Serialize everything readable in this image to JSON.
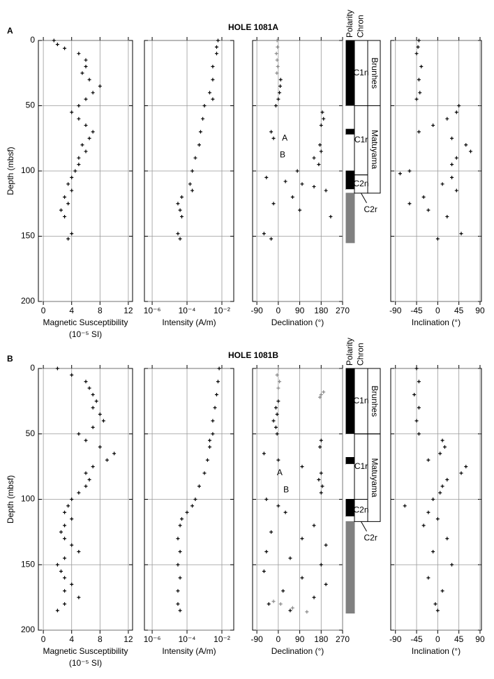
{
  "chart_data": [
    {
      "label": "A",
      "title": "HOLE 1081A",
      "ylabel": "Depth (mbsf)",
      "ylim": [
        0,
        200
      ],
      "yticks": [
        0,
        50,
        100,
        150,
        200
      ],
      "panels": [
        {
          "type": "scatter",
          "xlabel": [
            "Magnetic Susceptibility",
            "(10⁻⁵ SI)"
          ],
          "xlim": [
            -0.7,
            12.6
          ],
          "xticks": [
            0,
            4,
            8,
            12
          ],
          "grid": true,
          "series": [
            {
              "color": "#000000",
              "y": [
                0,
                3,
                6,
                10,
                15,
                20,
                25,
                30,
                35,
                40,
                45,
                50,
                55,
                60,
                65,
                70,
                75,
                80,
                85,
                90,
                95,
                100,
                105,
                110,
                115,
                120,
                125,
                130,
                135,
                148,
                152
              ],
              "x": [
                1.5,
                2,
                3,
                5,
                6,
                6,
                5.5,
                6.5,
                8,
                7,
                6,
                5,
                4,
                5,
                6,
                7,
                6.5,
                5.5,
                6,
                5,
                5,
                4.5,
                4,
                3.5,
                4,
                3,
                3.5,
                2.5,
                3,
                4,
                3.5
              ]
            }
          ]
        },
        {
          "type": "scatter",
          "xscale": "log",
          "xlabel": [
            "Intensity (A/m)"
          ],
          "xlim": [
            3.6e-07,
            0.048
          ],
          "xticks": [
            {
              "value": 1e-06,
              "label": "10⁻⁶"
            },
            {
              "value": 0.0001,
              "label": "10⁻⁴"
            },
            {
              "value": 0.01,
              "label": "10⁻²"
            }
          ],
          "grid": true,
          "series": [
            {
              "color": "#000000",
              "y": [
                0,
                5,
                10,
                20,
                30,
                40,
                45,
                50,
                60,
                70,
                80,
                90,
                100,
                110,
                115,
                120,
                125,
                130,
                135,
                148,
                152
              ],
              "x": [
                0.006,
                0.005,
                0.005,
                0.003,
                0.003,
                0.002,
                0.003,
                0.001,
                0.0008,
                0.0006,
                0.0005,
                0.0003,
                0.0002,
                0.00015,
                0.0002,
                5e-05,
                3e-05,
                4e-05,
                5e-05,
                3e-05,
                4e-05
              ]
            }
          ]
        },
        {
          "type": "scatter",
          "xlabel": [
            "Declination (°)"
          ],
          "xlim": [
            -108,
            270
          ],
          "xticks": [
            -90,
            0,
            90,
            180,
            270
          ],
          "grid": true,
          "series": [
            {
              "color": "#000000",
              "y": [
                30,
                35,
                40,
                45,
                50,
                55,
                60,
                65,
                70,
                75,
                80,
                85,
                90,
                95,
                100,
                105,
                108,
                110,
                112,
                115,
                120,
                125,
                130,
                135,
                148,
                152
              ],
              "x": [
                10,
                8,
                5,
                0,
                -10,
                185,
                190,
                180,
                -30,
                -20,
                175,
                180,
                150,
                170,
                80,
                -50,
                30,
                100,
                150,
                200,
                60,
                -20,
                90,
                220,
                -60,
                -30
              ]
            },
            {
              "color": "#888888",
              "y": [
                0,
                5,
                10,
                15,
                20,
                25
              ],
              "x": [
                -5,
                -3,
                -8,
                -5,
                -2,
                -6
              ]
            }
          ],
          "annotations": [
            {
              "text": "A",
              "x": 27,
              "y": 75
            },
            {
              "text": "B",
              "x": 18,
              "y": 88
            }
          ]
        },
        {
          "type": "scatter",
          "xlabel": [
            "Inclination (°)"
          ],
          "xlim": [
            -100,
            93
          ],
          "xticks": [
            -90,
            -45,
            0,
            45,
            90
          ],
          "grid": true,
          "series": [
            {
              "color": "#000000",
              "y": [
                0,
                5,
                10,
                20,
                30,
                40,
                45,
                50,
                55,
                60,
                65,
                70,
                75,
                80,
                85,
                90,
                95,
                100,
                102,
                105,
                110,
                115,
                120,
                125,
                130,
                135,
                148,
                152
              ],
              "x": [
                -40,
                -42,
                -45,
                -35,
                -40,
                -38,
                -45,
                45,
                40,
                20,
                -10,
                -40,
                30,
                60,
                70,
                40,
                30,
                -60,
                -80,
                30,
                10,
                40,
                -30,
                -60,
                -20,
                20,
                50,
                0
              ]
            }
          ]
        }
      ],
      "polarity": {
        "type": "polarity",
        "polarity_heading": "Polarity",
        "chron_heading": "Chron",
        "intervals": [
          {
            "top": 0,
            "bottom": 50,
            "color": "#000000"
          },
          {
            "top": 50,
            "bottom": 68,
            "color": "#ffffff"
          },
          {
            "top": 68,
            "bottom": 72,
            "color": "#000000"
          },
          {
            "top": 72,
            "bottom": 100,
            "color": "#ffffff"
          },
          {
            "top": 100,
            "bottom": 114,
            "color": "#000000"
          },
          {
            "top": 114,
            "bottom": 117,
            "color": "#ffffff"
          },
          {
            "top": 117,
            "bottom": 155,
            "color": "#808080"
          }
        ],
        "chrons": [
          {
            "label": "C1n",
            "top": 0,
            "bottom": 50
          },
          {
            "label": "C1r",
            "top": 50,
            "bottom": 103
          },
          {
            "label": "C2n",
            "top": 103,
            "bottom": 117
          },
          {
            "label": "C2r",
            "top": 117
          }
        ],
        "epochs": [
          {
            "label": "Brunhes",
            "top": 0,
            "bottom": 50
          },
          {
            "label": "Matuyama",
            "top": 50,
            "bottom": 117
          }
        ]
      }
    },
    {
      "label": "B",
      "title": "HOLE 1081B",
      "ylabel": "Depth (mbsf)",
      "ylim": [
        0,
        200
      ],
      "yticks": [
        0,
        50,
        100,
        150,
        200
      ],
      "panels": [
        {
          "type": "scatter",
          "xlabel": [
            "Magnetic Susceptibility",
            "(10⁻⁵ SI)"
          ],
          "xlim": [
            -0.7,
            12.6
          ],
          "xticks": [
            0,
            4,
            8,
            12
          ],
          "grid": true,
          "series": [
            {
              "color": "#000000",
              "y": [
                0,
                5,
                10,
                15,
                20,
                25,
                30,
                35,
                40,
                45,
                50,
                55,
                60,
                65,
                70,
                75,
                80,
                85,
                90,
                95,
                100,
                105,
                110,
                115,
                120,
                125,
                130,
                135,
                140,
                145,
                150,
                155,
                160,
                165,
                170,
                175,
                180,
                185
              ],
              "x": [
                2,
                4,
                6,
                6.5,
                7,
                7.5,
                7,
                8,
                8.5,
                7,
                5,
                6,
                8,
                10,
                9,
                7,
                6,
                6.5,
                6,
                5,
                4,
                3.5,
                3,
                4,
                3,
                2.5,
                3,
                4,
                5,
                3,
                2,
                2.5,
                3,
                4,
                3,
                5,
                3,
                2
              ]
            }
          ]
        },
        {
          "type": "scatter",
          "xscale": "log",
          "xlabel": [
            "Intensity (A/m)"
          ],
          "xlim": [
            3.6e-07,
            0.048
          ],
          "xticks": [
            {
              "value": 1e-06,
              "label": "10⁻⁶"
            },
            {
              "value": 0.0001,
              "label": "10⁻⁴"
            },
            {
              "value": 0.01,
              "label": "10⁻²"
            }
          ],
          "grid": true,
          "series": [
            {
              "color": "#000000",
              "y": [
                0,
                10,
                20,
                30,
                40,
                50,
                55,
                60,
                70,
                80,
                90,
                100,
                105,
                110,
                115,
                120,
                130,
                140,
                150,
                160,
                170,
                180,
                185
              ],
              "x": [
                0.007,
                0.006,
                0.005,
                0.004,
                0.003,
                0.003,
                0.002,
                0.002,
                0.0015,
                0.001,
                0.0005,
                0.0003,
                0.0002,
                0.0001,
                5e-05,
                4e-05,
                3e-05,
                4e-05,
                3e-05,
                4e-05,
                3e-05,
                3e-05,
                4e-05
              ]
            }
          ]
        },
        {
          "type": "scatter",
          "xlabel": [
            "Declination (°)"
          ],
          "xlim": [
            -108,
            270
          ],
          "xticks": [
            -90,
            0,
            90,
            180,
            270
          ],
          "grid": true,
          "series": [
            {
              "color": "#000000",
              "y": [
                25,
                30,
                35,
                40,
                45,
                50,
                55,
                60,
                65,
                70,
                75,
                80,
                85,
                90,
                95,
                100,
                105,
                110,
                120,
                125,
                130,
                135,
                140,
                145,
                150,
                155,
                160,
                165,
                170,
                175,
                180,
                185
              ],
              "x": [
                0,
                -10,
                -5,
                -20,
                -10,
                -5,
                180,
                175,
                -60,
                0,
                100,
                180,
                170,
                185,
                180,
                -50,
                0,
                30,
                150,
                -30,
                100,
                200,
                -50,
                50,
                180,
                -60,
                100,
                200,
                20,
                150,
                -40,
                50
              ]
            },
            {
              "color": "#888888",
              "y": [
                0,
                5,
                10,
                15,
                18,
                20,
                22,
                178,
                180,
                183,
                186
              ],
              "x": [
                0,
                -5,
                5,
                0,
                190,
                180,
                175,
                -20,
                10,
                60,
                120
              ]
            }
          ],
          "annotations": [
            {
              "text": "A",
              "x": 6,
              "y": 80
            },
            {
              "text": "B",
              "x": 33,
              "y": 93
            }
          ]
        },
        {
          "type": "scatter",
          "xlabel": [
            "Inclination (°)"
          ],
          "xlim": [
            -100,
            93
          ],
          "xticks": [
            -90,
            -45,
            0,
            45,
            90
          ],
          "grid": true,
          "series": [
            {
              "color": "#000000",
              "y": [
                0,
                10,
                20,
                30,
                40,
                50,
                55,
                60,
                65,
                70,
                75,
                80,
                85,
                90,
                95,
                100,
                105,
                110,
                115,
                120,
                130,
                140,
                150,
                160,
                170,
                180,
                185
              ],
              "x": [
                -45,
                -40,
                -50,
                -40,
                -45,
                -40,
                10,
                15,
                5,
                -20,
                60,
                50,
                20,
                10,
                5,
                -10,
                -70,
                -20,
                0,
                -30,
                20,
                -10,
                30,
                -20,
                10,
                -5,
                0
              ]
            }
          ]
        }
      ],
      "polarity": {
        "type": "polarity",
        "polarity_heading": "Polarity",
        "chron_heading": "Chron",
        "intervals": [
          {
            "top": 0,
            "bottom": 50,
            "color": "#000000"
          },
          {
            "top": 50,
            "bottom": 68,
            "color": "#ffffff"
          },
          {
            "top": 68,
            "bottom": 73,
            "color": "#000000"
          },
          {
            "top": 73,
            "bottom": 100,
            "color": "#ffffff"
          },
          {
            "top": 100,
            "bottom": 113,
            "color": "#000000"
          },
          {
            "top": 113,
            "bottom": 117,
            "color": "#ffffff"
          },
          {
            "top": 117,
            "bottom": 187,
            "color": "#808080"
          }
        ],
        "chrons": [
          {
            "label": "C1n",
            "top": 0,
            "bottom": 50
          },
          {
            "label": "C1r",
            "top": 50,
            "bottom": 100
          },
          {
            "label": "C2n",
            "top": 100,
            "bottom": 117
          },
          {
            "label": "C2r",
            "top": 117
          }
        ],
        "epochs": [
          {
            "label": "Brunhes",
            "top": 0,
            "bottom": 50
          },
          {
            "label": "Matuyama",
            "top": 50,
            "bottom": 117
          }
        ]
      }
    }
  ]
}
